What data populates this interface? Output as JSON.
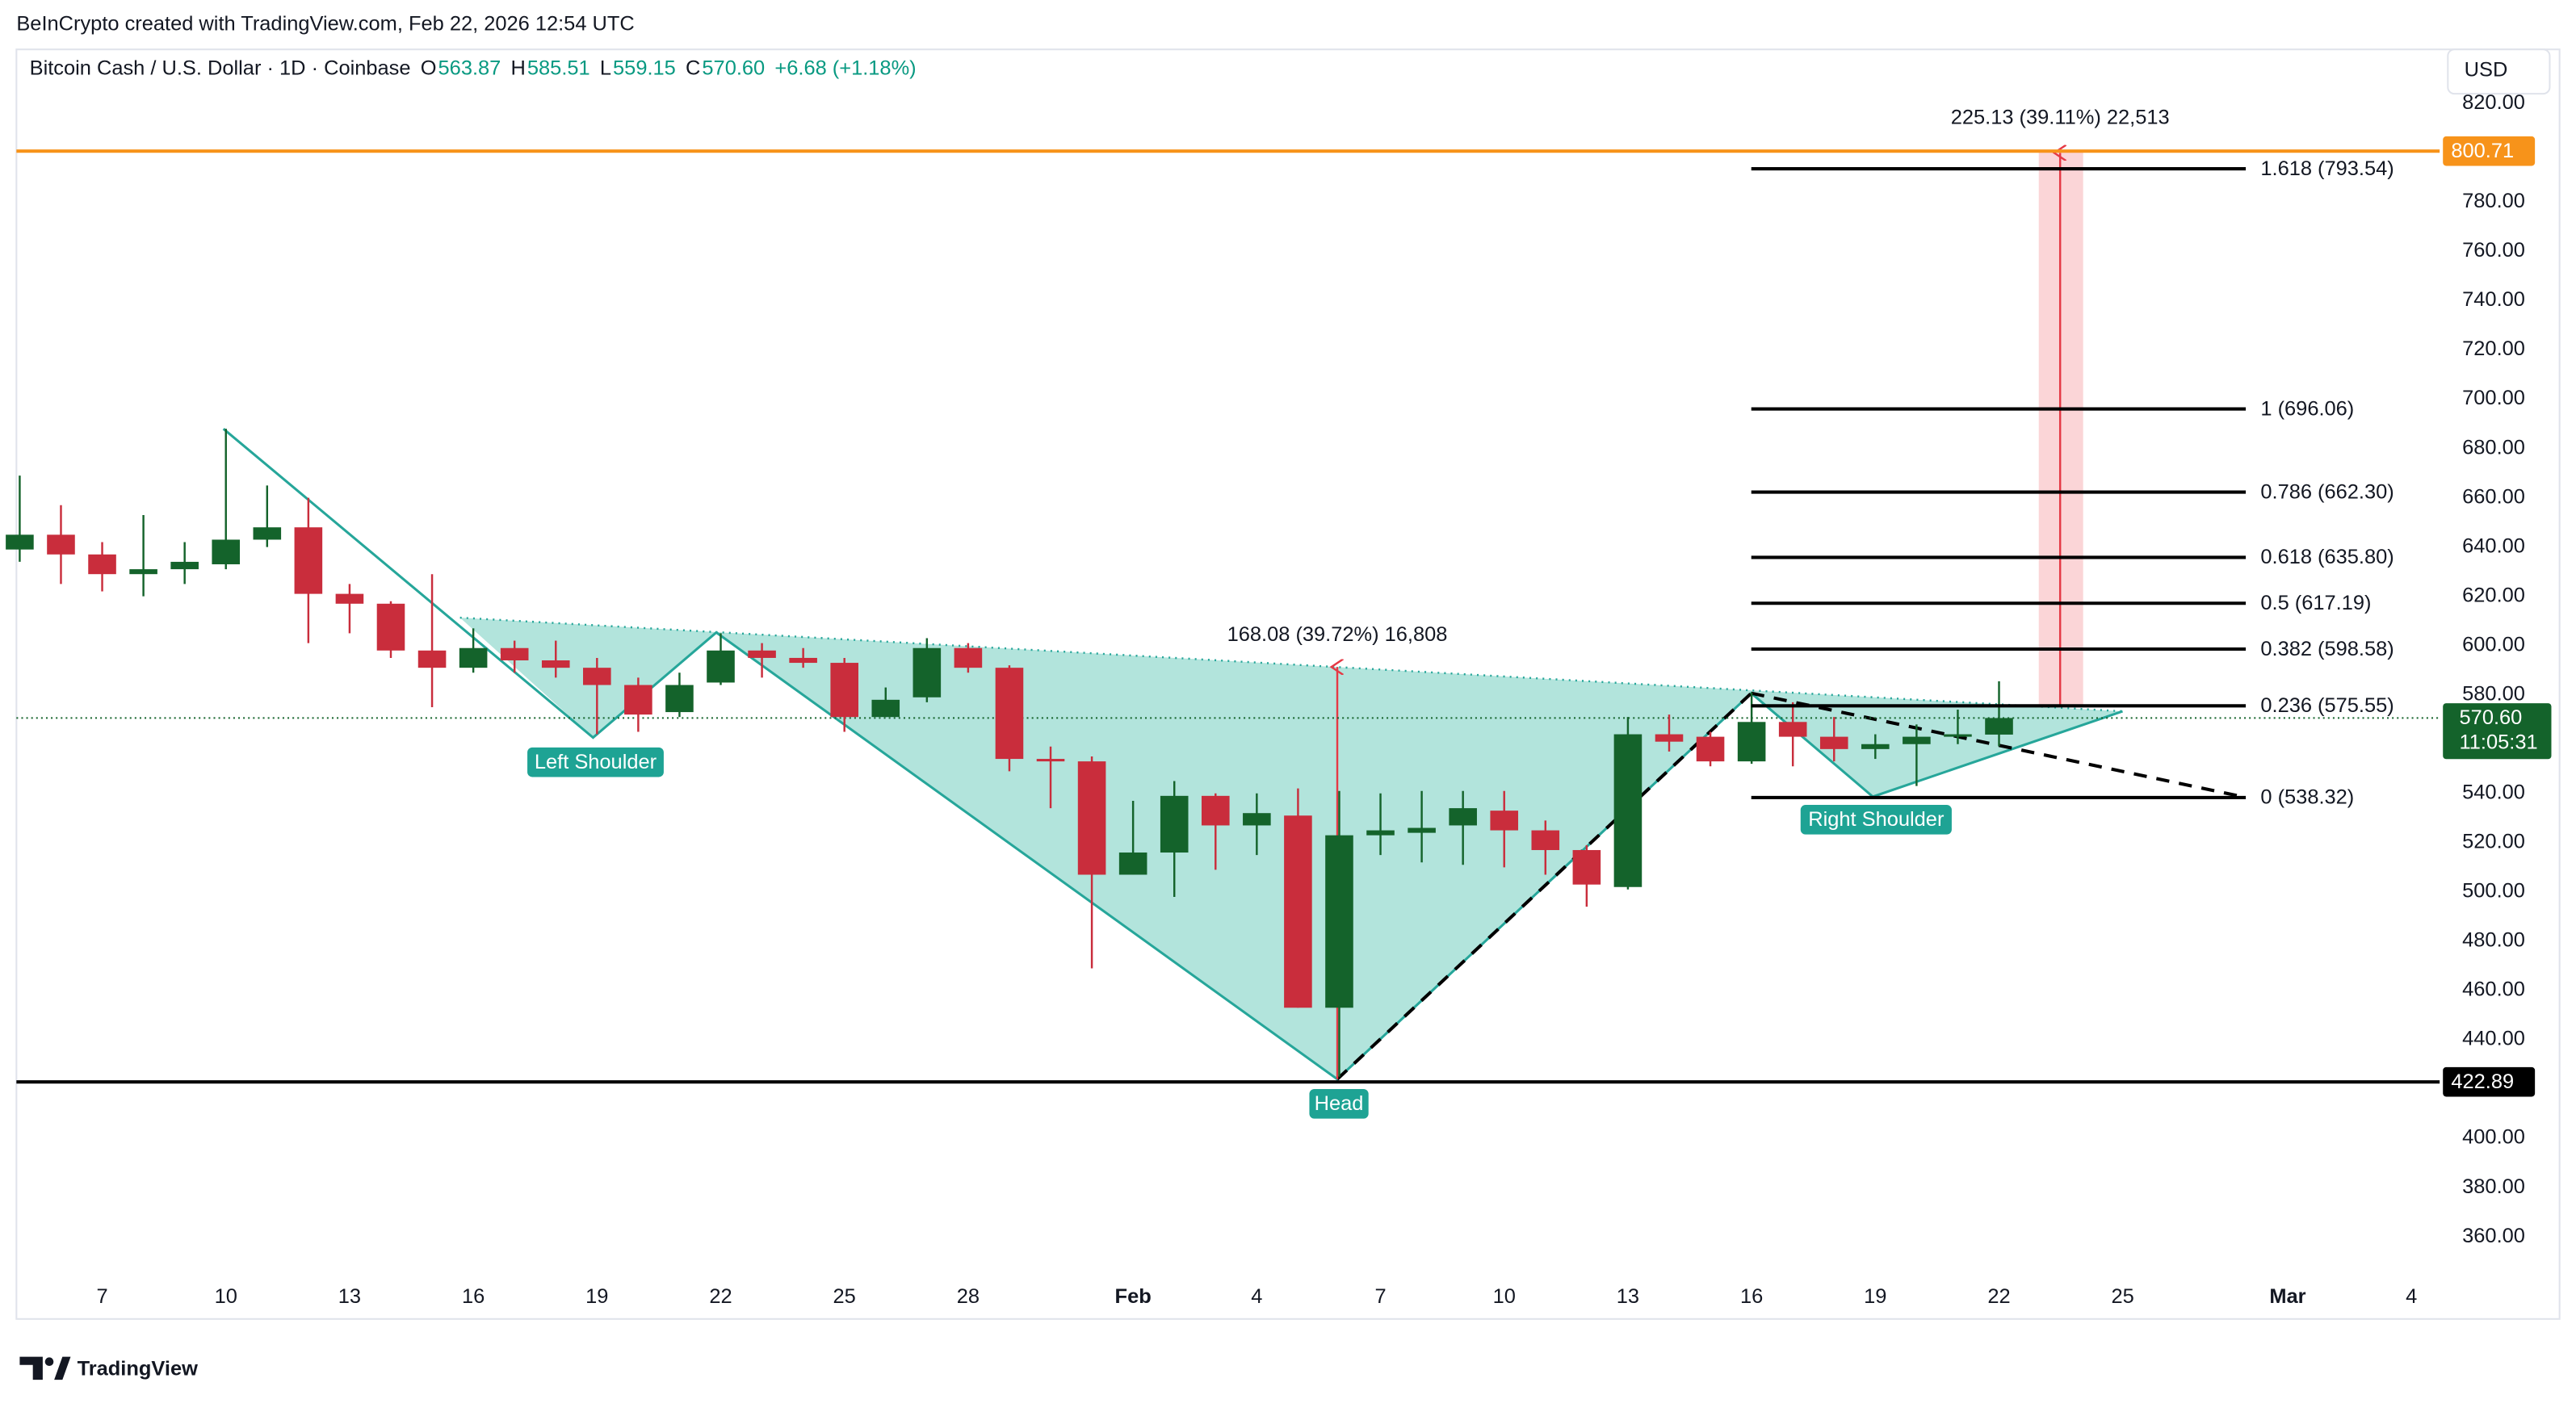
{
  "header": {
    "attribution": "BeInCrypto created with TradingView.com, Feb 22, 2026 12:54 UTC"
  },
  "chart_data": {
    "type": "candlestick",
    "title": "Bitcoin Cash / U.S. Dollar · 1D · Coinbase",
    "ohlc_legend": {
      "keys": [
        "O",
        "H",
        "L",
        "C"
      ],
      "values": [
        563.87,
        585.51,
        559.15,
        570.6
      ],
      "value_labels": [
        "563.87",
        "585.51",
        "559.15",
        "570.60"
      ]
    },
    "change": "+6.68 (+1.18%)",
    "currency": "USD",
    "categories": [
      null,
      null,
      "7",
      null,
      null,
      "10",
      null,
      null,
      "13",
      null,
      null,
      "16",
      null,
      null,
      "19",
      null,
      null,
      "22",
      null,
      null,
      "25",
      null,
      null,
      "28",
      null,
      null,
      null,
      "Feb",
      null,
      null,
      "4",
      null,
      null,
      "7",
      null,
      null,
      "10",
      null,
      null,
      "13",
      null,
      null,
      "16",
      null,
      null,
      "19",
      null,
      null,
      "22",
      null,
      null,
      "25",
      null,
      null,
      null,
      "Mar",
      null,
      null,
      "4",
      null
    ],
    "open": [
      639,
      645,
      637,
      629,
      631,
      633,
      643,
      648,
      621,
      617,
      598,
      591,
      599,
      594,
      591,
      584,
      573,
      585,
      598,
      595,
      593,
      571,
      579,
      599,
      591,
      554,
      553,
      507,
      516,
      539,
      527,
      531,
      453,
      523,
      524,
      527,
      533,
      525,
      517,
      502,
      564,
      563,
      553,
      569,
      563,
      558,
      560,
      563,
      563.87,
      null,
      null,
      null,
      null,
      null,
      null,
      null,
      null,
      null,
      null,
      null
    ],
    "high": [
      669,
      657,
      642,
      653,
      642,
      688,
      665,
      660,
      625,
      618,
      629,
      607,
      602,
      602,
      595,
      587,
      589,
      605,
      601,
      599,
      595,
      583,
      603,
      601,
      592,
      559,
      555,
      537,
      545,
      540,
      540,
      542,
      541,
      540,
      541,
      541,
      541,
      529,
      519,
      571,
      572,
      565,
      581,
      577,
      571,
      564,
      568,
      574,
      585.51,
      null,
      null,
      null,
      null,
      null,
      null,
      null,
      null,
      null,
      null,
      null
    ],
    "low": [
      634,
      625,
      622,
      620,
      625,
      631,
      640,
      601,
      605,
      595,
      575,
      589,
      589,
      587,
      564,
      565,
      571,
      584,
      587,
      591,
      565,
      571,
      577,
      589,
      549,
      534,
      469,
      507,
      498,
      509,
      515,
      453,
      425,
      515,
      512,
      511,
      510,
      507,
      494,
      501,
      557,
      551,
      552,
      551,
      553,
      554,
      543,
      560,
      559.15,
      null,
      null,
      null,
      null,
      null,
      null,
      null,
      null,
      null,
      null,
      null
    ],
    "close": [
      645,
      637,
      629,
      631,
      634,
      643,
      648,
      621,
      617,
      598,
      591,
      599,
      594,
      591,
      584,
      572,
      584,
      598,
      595,
      593,
      571,
      578,
      599,
      591,
      554,
      553,
      507,
      516,
      539,
      527,
      532,
      453,
      523,
      525,
      526,
      534,
      525,
      517,
      503,
      564,
      561,
      553,
      569,
      563,
      558,
      560,
      563,
      564,
      570.6,
      null,
      null,
      null,
      null,
      null,
      null,
      null,
      null,
      null,
      null,
      null
    ],
    "up_color": "#14632b",
    "down_color": "#c92d3c",
    "ylim": [
      345.33,
      842
    ],
    "yticks": [
      {
        "value": 820,
        "label": "820.00"
      },
      {
        "value": 780,
        "label": "780.00"
      },
      {
        "value": 760,
        "label": "760.00"
      },
      {
        "value": 740,
        "label": "740.00"
      },
      {
        "value": 720,
        "label": "720.00"
      },
      {
        "value": 700,
        "label": "700.00"
      },
      {
        "value": 680,
        "label": "680.00"
      },
      {
        "value": 660,
        "label": "660.00"
      },
      {
        "value": 640,
        "label": "640.00"
      },
      {
        "value": 620,
        "label": "620.00"
      },
      {
        "value": 600,
        "label": "600.00"
      },
      {
        "value": 580,
        "label": "580.00"
      },
      {
        "value": 540,
        "label": "540.00"
      },
      {
        "value": 520,
        "label": "520.00"
      },
      {
        "value": 500,
        "label": "500.00"
      },
      {
        "value": 480,
        "label": "480.00"
      },
      {
        "value": 460,
        "label": "460.00"
      },
      {
        "value": 440,
        "label": "440.00"
      },
      {
        "value": 400,
        "label": "400.00"
      },
      {
        "value": 380,
        "label": "380.00"
      },
      {
        "value": 360,
        "label": "360.00"
      }
    ],
    "grid": false,
    "price_lines": [
      {
        "value": 800.71,
        "color": "#f7931a"
      },
      {
        "value": 422.89,
        "color": "#000000"
      }
    ],
    "last_price": {
      "value": 570.6,
      "label": "570.60",
      "countdown": "11:05:31",
      "color": "#14632b"
    },
    "fib_levels": {
      "values": [
        793.54,
        696.06,
        662.3,
        635.8,
        617.19,
        598.58,
        575.55,
        538.32
      ],
      "value_labels": [
        "1.618 (793.54)",
        "1 (696.06)",
        "0.786 (662.30)",
        "0.618 (635.80)",
        "0.5 (617.19)",
        "0.382 (598.58)",
        "0.236 (575.55)",
        "0 (538.32)"
      ]
    },
    "annotations": [
      "Left Shoulder",
      "Head",
      "Right Shoulder"
    ],
    "measurements": [
      "168.08 (39.72%) 16,808",
      "225.13 (39.11%) 22,513"
    ]
  },
  "footer": {
    "logo": "TradingView"
  }
}
